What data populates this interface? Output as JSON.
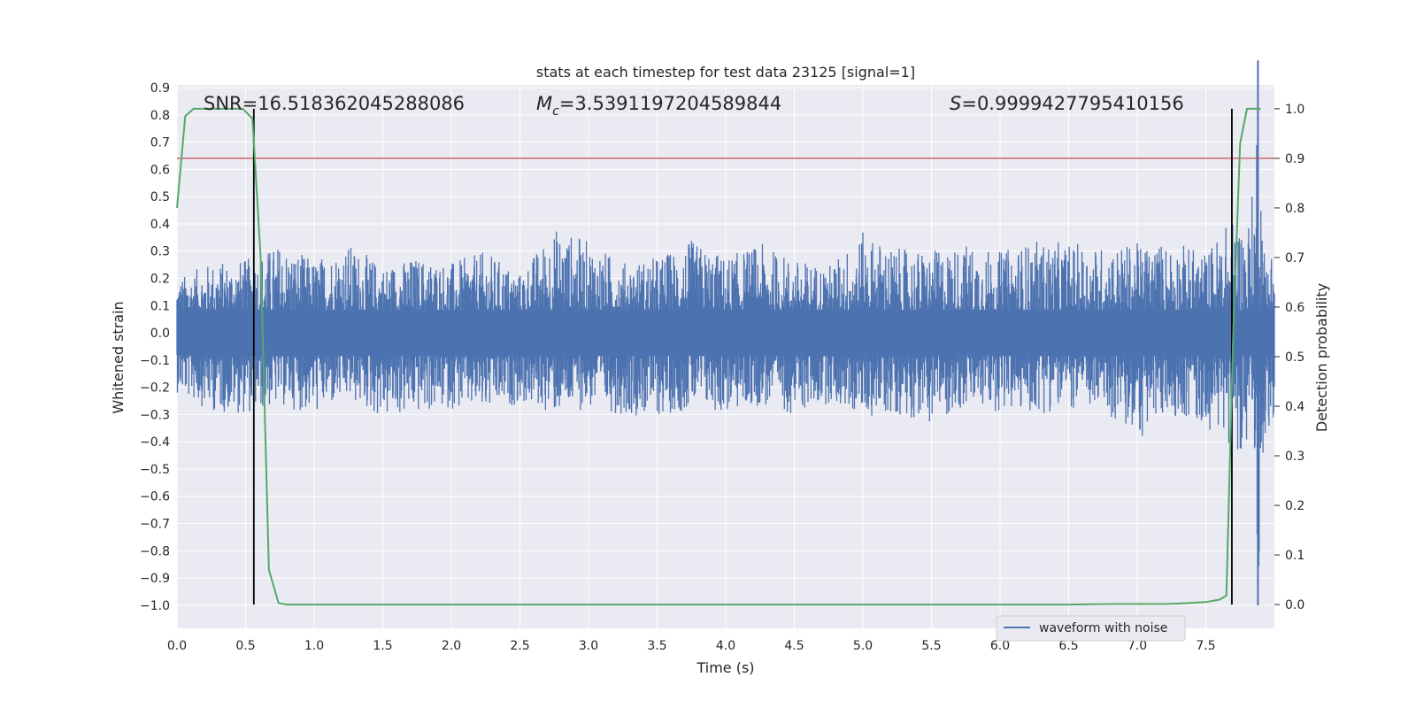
{
  "chart_data": {
    "type": "line",
    "title": "stats at each timestep for test data 23125 [signal=1]",
    "xlabel": "Time (s)",
    "ylabel": "Whitened strain",
    "y2label": "Detection probability",
    "xlim": [
      0.0,
      8.0
    ],
    "ylim": [
      -1.085,
      0.91
    ],
    "y2lim": [
      -0.048,
      1.048
    ],
    "xticks": [
      "0.0",
      "0.5",
      "1.0",
      "1.5",
      "2.0",
      "2.5",
      "3.0",
      "3.5",
      "4.0",
      "4.5",
      "5.0",
      "5.5",
      "6.0",
      "6.5",
      "7.0",
      "7.5"
    ],
    "yticks": [
      "0.9",
      "0.8",
      "0.7",
      "0.6",
      "0.5",
      "0.4",
      "0.3",
      "0.2",
      "0.1",
      "0.0",
      "−0.1",
      "−0.2",
      "−0.3",
      "−0.4",
      "−0.5",
      "−0.6",
      "−0.7",
      "−0.8",
      "−0.9",
      "−1.0"
    ],
    "y2ticks": [
      "0.0",
      "0.1",
      "0.2",
      "0.3",
      "0.4",
      "0.5",
      "0.6",
      "0.7",
      "0.8",
      "0.9",
      "1.0"
    ],
    "grid": true,
    "legend": {
      "position": "bottom-right",
      "entries": [
        "waveform with noise"
      ]
    },
    "annotations": {
      "snr": "SNR=16.518362045288086",
      "mc_prefix": "M",
      "mc_sub": "c",
      "mc_value": "=3.5391197204589844",
      "s_prefix": "S",
      "s_value": "=0.9999427795410156"
    },
    "threshold": 0.9,
    "vlines_x": [
      0.56,
      7.69
    ],
    "noise_envelope": {
      "x": [
        0.0,
        0.25,
        0.5,
        0.75,
        1.0,
        1.25,
        1.5,
        1.75,
        2.0,
        2.25,
        2.5,
        2.75,
        3.0,
        3.25,
        3.5,
        3.75,
        4.0,
        4.25,
        4.5,
        4.75,
        5.0,
        5.25,
        5.5,
        5.75,
        6.0,
        6.25,
        6.5,
        6.75,
        7.0,
        7.25,
        7.5,
        7.6,
        7.7,
        7.8,
        7.85,
        7.88,
        7.92,
        8.0
      ],
      "upper": [
        0.2,
        0.26,
        0.27,
        0.33,
        0.27,
        0.33,
        0.25,
        0.28,
        0.26,
        0.3,
        0.22,
        0.39,
        0.34,
        0.26,
        0.28,
        0.34,
        0.28,
        0.33,
        0.27,
        0.25,
        0.37,
        0.31,
        0.3,
        0.33,
        0.3,
        0.34,
        0.33,
        0.32,
        0.33,
        0.34,
        0.3,
        0.37,
        0.43,
        0.4,
        0.55,
        1.0,
        0.33,
        0.32
      ],
      "lower": [
        -0.22,
        -0.29,
        -0.3,
        -0.27,
        -0.3,
        -0.25,
        -0.32,
        -0.3,
        -0.28,
        -0.3,
        -0.26,
        -0.3,
        -0.28,
        -0.3,
        -0.31,
        -0.28,
        -0.3,
        -0.27,
        -0.3,
        -0.26,
        -0.31,
        -0.3,
        -0.33,
        -0.28,
        -0.29,
        -0.3,
        -0.28,
        -0.29,
        -0.4,
        -0.3,
        -0.35,
        -0.37,
        -0.42,
        -0.45,
        -0.5,
        -1.0,
        -0.4,
        -0.35
      ]
    },
    "series": [
      {
        "name": "waveform with noise",
        "color": "#4c72b0",
        "kind": "noise_band"
      },
      {
        "color": "#55a868",
        "axis": "right",
        "x": [
          0.0,
          0.06,
          0.12,
          0.18,
          0.24,
          0.3,
          0.36,
          0.42,
          0.48,
          0.55,
          0.61,
          0.67,
          0.74,
          0.8,
          0.86,
          1.0,
          2.0,
          3.0,
          4.0,
          5.0,
          6.0,
          6.5,
          6.8,
          7.0,
          7.2,
          7.3,
          7.5,
          7.6,
          7.65,
          7.7,
          7.75,
          7.8,
          7.85,
          7.9
        ],
        "values": [
          0.8,
          0.985,
          1.0,
          1.0,
          1.0,
          1.0,
          1.0,
          1.0,
          1.0,
          0.98,
          0.7,
          0.07,
          0.003,
          0.0,
          0.0,
          0.0,
          0.0,
          0.0,
          0.0,
          0.0,
          0.0,
          0.0,
          0.001,
          0.001,
          0.001,
          0.002,
          0.005,
          0.01,
          0.018,
          0.55,
          0.93,
          1.0,
          1.0,
          1.0
        ]
      }
    ],
    "colors": {
      "background": "#eaeaf2",
      "grid": "#ffffff",
      "threshold_line": "#c44e52",
      "vline": "#000000"
    }
  }
}
